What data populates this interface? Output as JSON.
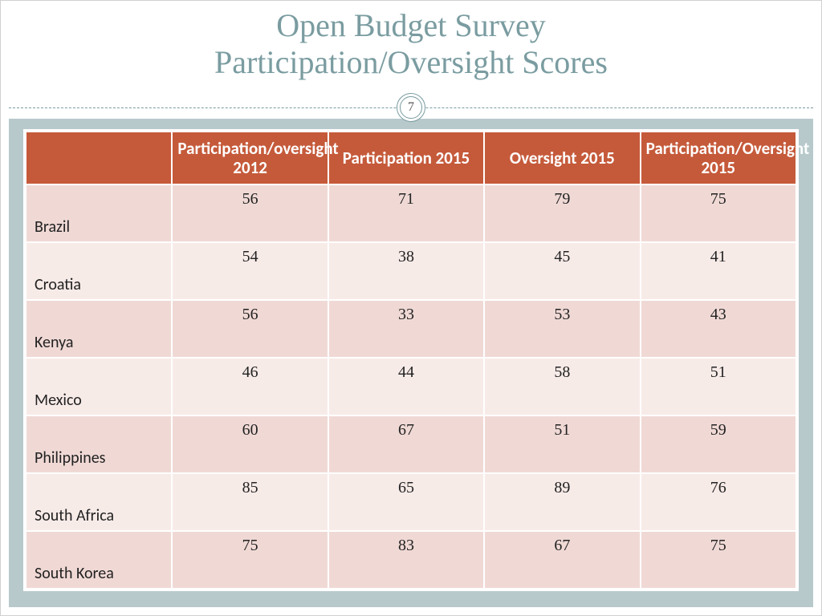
{
  "title_line1": "Open Budget Survey",
  "title_line2": "Participation/Oversight Scores",
  "page_number": "7",
  "colors": {
    "title_color": "#7a9ca0",
    "header_bg": "#c55a3a",
    "header_text": "#ffffff",
    "row_odd_bg": "#f0d9d5",
    "row_even_bg": "#f7ebe8",
    "content_bg": "#b8c9cc",
    "border_color": "#ffffff"
  },
  "table": {
    "columns": [
      "",
      "Participation/oversight 2012",
      "Participation 2015",
      "Oversight 2015",
      "Participation/Oversight 2015"
    ],
    "rows": [
      {
        "country": "Brazil",
        "v1": "56",
        "v2": "71",
        "v3": "79",
        "v4": "75"
      },
      {
        "country": "Croatia",
        "v1": "54",
        "v2": "38",
        "v3": "45",
        "v4": "41"
      },
      {
        "country": "Kenya",
        "v1": "56",
        "v2": "33",
        "v3": "53",
        "v4": "43"
      },
      {
        "country": "Mexico",
        "v1": "46",
        "v2": "44",
        "v3": "58",
        "v4": "51"
      },
      {
        "country": "Philippines",
        "v1": "60",
        "v2": "67",
        "v3": "51",
        "v4": "59"
      },
      {
        "country": "South Africa",
        "v1": "85",
        "v2": "65",
        "v3": "89",
        "v4": "76"
      },
      {
        "country": "South Korea",
        "v1": "75",
        "v2": "83",
        "v3": "67",
        "v4": "75"
      }
    ]
  }
}
